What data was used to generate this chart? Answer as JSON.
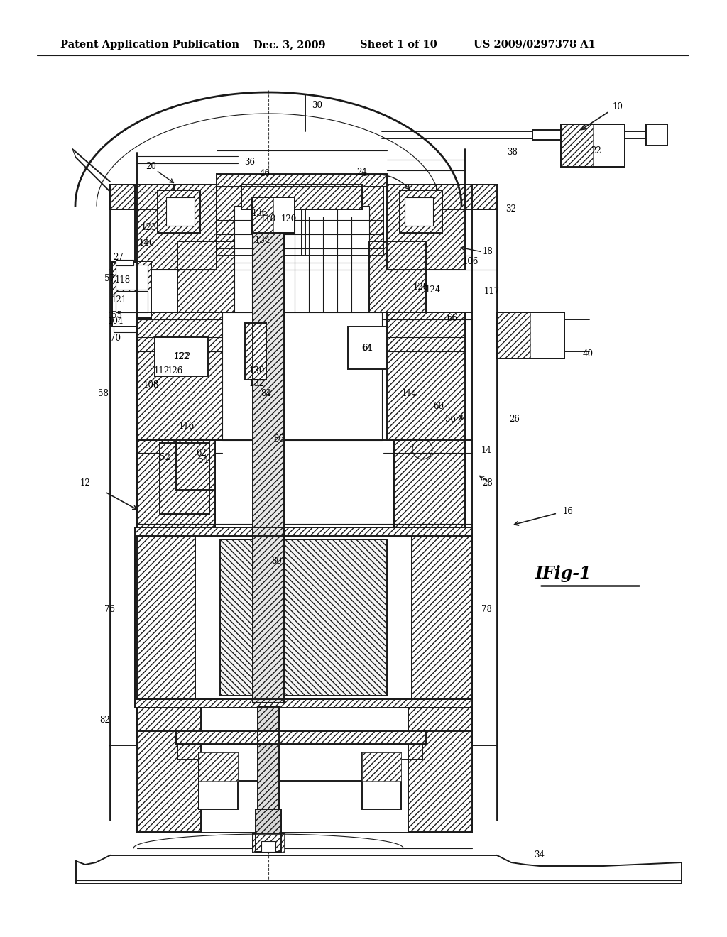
{
  "header_left": "Patent Application Publication",
  "header_date": "Dec. 3, 2009",
  "header_sheet": "Sheet 1 of 10",
  "header_patent": "US 2009/0297378 A1",
  "figure_label": "IFig-1",
  "background_color": "#ffffff",
  "line_color": "#1a1a1a",
  "header_fontsize": 10.5,
  "label_fontsize": 8.5,
  "fig_label_fontsize": 17
}
